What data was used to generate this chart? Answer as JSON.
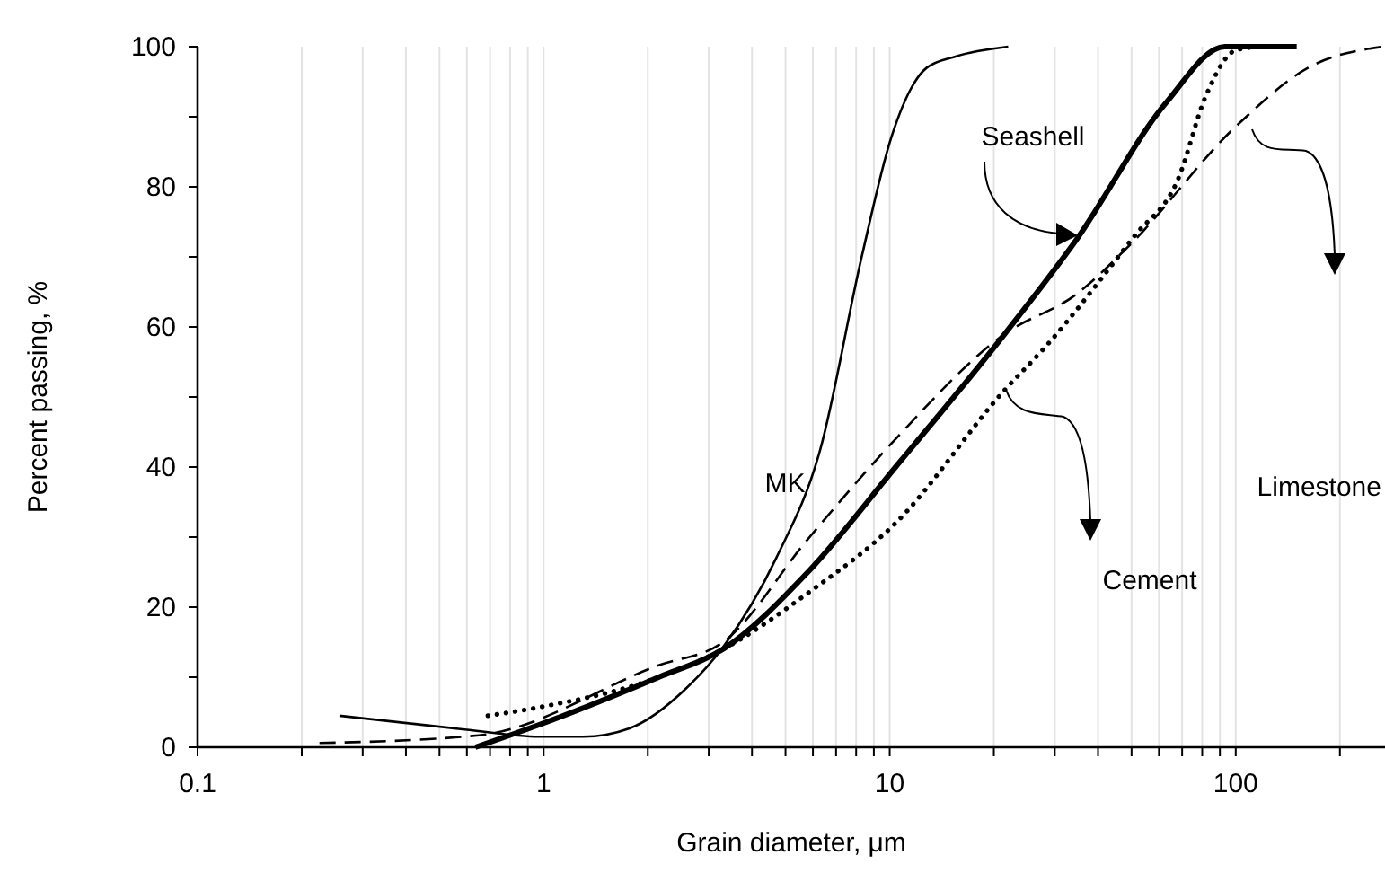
{
  "chart_data": {
    "type": "line",
    "xlabel": "Grain diameter, μm",
    "ylabel": "Percent passing, %",
    "log": "x",
    "grid": "x",
    "marker": "none",
    "xlim": [
      0.1,
      270
    ],
    "ylim": [
      0,
      100
    ],
    "xticks": [
      0.1,
      {
        "value": 0.2,
        "label": null
      },
      {
        "value": 0.3,
        "label": null
      },
      {
        "value": 0.4,
        "label": null
      },
      {
        "value": 0.5,
        "label": null
      },
      {
        "value": 0.6,
        "label": null
      },
      {
        "value": 0.7,
        "label": null
      },
      {
        "value": 0.8,
        "label": null
      },
      {
        "value": 0.9,
        "label": null
      },
      1,
      {
        "value": 2,
        "label": null
      },
      {
        "value": 3,
        "label": null
      },
      {
        "value": 4,
        "label": null
      },
      {
        "value": 5,
        "label": null
      },
      {
        "value": 6,
        "label": null
      },
      {
        "value": 7,
        "label": null
      },
      {
        "value": 8,
        "label": null
      },
      {
        "value": 9,
        "label": null
      },
      10,
      {
        "value": 20,
        "label": null
      },
      {
        "value": 30,
        "label": null
      },
      {
        "value": 40,
        "label": null
      },
      {
        "value": 50,
        "label": null
      },
      {
        "value": 60,
        "label": null
      },
      {
        "value": 70,
        "label": null
      },
      {
        "value": 80,
        "label": null
      },
      {
        "value": 90,
        "label": null
      },
      100,
      {
        "value": 200,
        "label": null
      }
    ],
    "yticks": [
      0,
      {
        "value": 10,
        "label": null
      },
      20,
      {
        "value": 30,
        "label": null
      },
      40,
      {
        "value": 50,
        "label": null
      },
      60,
      {
        "value": 70,
        "label": null
      },
      80,
      {
        "value": 90,
        "label": null
      },
      100
    ],
    "series": [
      {
        "color": "#000000",
        "line_style": "solid",
        "x": [
          0.257,
          0.6,
          0.97,
          1.3,
          1.77,
          2.58,
          3.3,
          4.7,
          6.3,
          8.3,
          10.1,
          12.8,
          15.5,
          22
        ],
        "values": [
          4.5,
          2.5,
          1.5,
          1.5,
          2.7,
          8.4,
          14.3,
          27,
          42.5,
          70,
          87,
          97,
          98.6,
          100
        ]
      },
      {
        "color": "#000000",
        "line_style": "solid",
        "x": [
          0.635,
          0.97,
          2.15,
          3.3,
          5.8,
          10.4,
          21.5,
          34.7,
          62.9,
          93,
          150
        ],
        "values": [
          0,
          3.2,
          10,
          14,
          25,
          40,
          59,
          72.5,
          92,
          100,
          100
        ]
      },
      {
        "color": "#000000",
        "line_style": "dotted",
        "x": [
          0.69,
          0.97,
          2.15,
          3.3,
          5.8,
          10.4,
          21.5,
          28,
          51,
          68,
          82,
          100,
          117
        ],
        "values": [
          4.5,
          5.7,
          10,
          14,
          22,
          32,
          51,
          57,
          73,
          81,
          93,
          99.5,
          100
        ]
      },
      {
        "color": "#000000",
        "line_style": "dashed",
        "x": [
          0.225,
          0.65,
          2.15,
          3.3,
          5.8,
          10.4,
          21.5,
          34.7,
          49,
          100,
          162,
          266
        ],
        "values": [
          0.6,
          1.7,
          11.7,
          15,
          29.7,
          44,
          59,
          64.7,
          71.5,
          88.6,
          97,
          100
        ]
      }
    ],
    "annotations": [
      "MK",
      "Seashell",
      "Cement",
      "Limestone"
    ]
  }
}
